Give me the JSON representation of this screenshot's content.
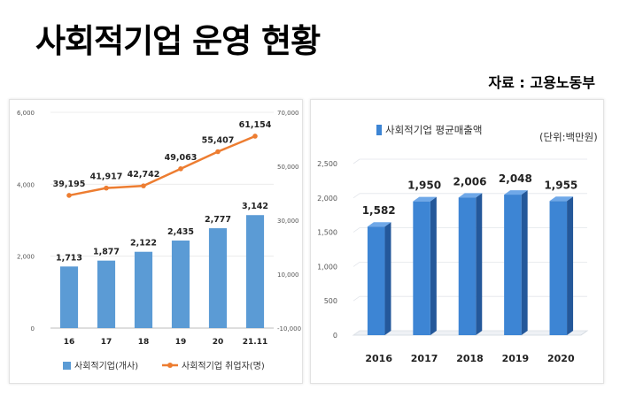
{
  "title": "사회적기업 운영 현황",
  "source": "자료 : 고용노동부",
  "chart_data": [
    {
      "type": "bar",
      "categories": [
        "16",
        "17",
        "18",
        "19",
        "20",
        "21.11"
      ],
      "series": [
        {
          "name": "사회적기업(개사)",
          "type": "bar",
          "axis": "left",
          "values": [
            1713,
            1877,
            2122,
            2435,
            2777,
            3142
          ],
          "labels": [
            "1,713",
            "1,877",
            "2,122",
            "2,435",
            "2,777",
            "3,142"
          ]
        },
        {
          "name": "사회적기업 취업자(명)",
          "type": "line",
          "axis": "right",
          "values": [
            39195,
            41917,
            42742,
            49063,
            55407,
            61154
          ],
          "labels": [
            "39,195",
            "41,917",
            "42,742",
            "49,063",
            "55,407",
            "61,154"
          ]
        }
      ],
      "ylim_left": [
        0,
        6000
      ],
      "ylim_right": [
        -10000,
        70000
      ],
      "left_ticks": [
        "0",
        "2,000",
        "4,000",
        "6,000"
      ],
      "right_ticks": [
        "-10,000",
        "10,000",
        "30,000",
        "50,000",
        "70,000"
      ],
      "legend_position": "bottom",
      "colors": {
        "bar": "#5b9bd5",
        "line": "#ed7d31"
      }
    },
    {
      "type": "bar",
      "categories": [
        "2016",
        "2017",
        "2018",
        "2019",
        "2020"
      ],
      "series": [
        {
          "name": "사회적기업 평균매출액",
          "values": [
            1582,
            1950,
            2006,
            2048,
            1955
          ],
          "labels": [
            "1,582",
            "1,950",
            "2,006",
            "2,048",
            "1,955"
          ]
        }
      ],
      "ylim": [
        0,
        2500
      ],
      "y_ticks": [
        "0",
        "500",
        "1,000",
        "1,500",
        "2,000",
        "2,500"
      ],
      "unit_note": "(단위:백만원)",
      "legend_position": "top",
      "colors": {
        "bar_front": "#3d85d4",
        "bar_side": "#24589a",
        "bar_top": "#6fa8e8"
      }
    }
  ]
}
